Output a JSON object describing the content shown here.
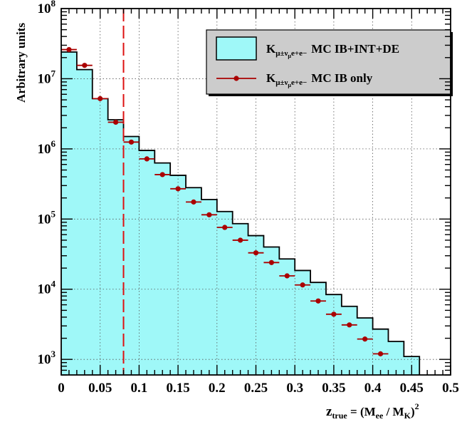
{
  "chart_data": {
    "type": "bar",
    "subtype": "histogram-with-points",
    "x_scale": "linear",
    "y_scale": "log",
    "xlim": [
      0,
      0.5
    ],
    "ylim": [
      600,
      100000000
    ],
    "grid": true,
    "legend_position": "top-right",
    "ylabel": "Arbitrary units",
    "xlabel": {
      "z": "z",
      "z_sub": "true",
      "eq": " = (M",
      "ee_sub": "ee",
      "slash": " / M",
      "k_sub": "K",
      "close": ")",
      "sup": "2"
    },
    "x_ticks": [
      {
        "value": 0,
        "label": "0"
      },
      {
        "value": 0.05,
        "label": "0.05"
      },
      {
        "value": 0.1,
        "label": "0.1"
      },
      {
        "value": 0.15,
        "label": "0.15"
      },
      {
        "value": 0.2,
        "label": "0.2"
      },
      {
        "value": 0.25,
        "label": "0.25"
      },
      {
        "value": 0.3,
        "label": "0.3"
      },
      {
        "value": 0.35,
        "label": "0.35"
      },
      {
        "value": 0.4,
        "label": "0.4"
      },
      {
        "value": 0.45,
        "label": "0.45"
      },
      {
        "value": 0.5,
        "label": "0.5"
      }
    ],
    "y_ticks": [
      {
        "value": 1000,
        "base": "10",
        "exp": "3"
      },
      {
        "value": 10000,
        "base": "10",
        "exp": "4"
      },
      {
        "value": 100000,
        "base": "10",
        "exp": "5"
      },
      {
        "value": 1000000,
        "base": "10",
        "exp": "6"
      },
      {
        "value": 10000000,
        "base": "10",
        "exp": "7"
      },
      {
        "value": 100000000,
        "base": "10",
        "exp": "8"
      }
    ],
    "cut_line": {
      "x": 0.08,
      "color": "#dd1111"
    },
    "series": [
      {
        "legend": {
          "k": "K",
          "sub": "μ±ν",
          "subsub": "μ",
          "sub2": "e+e−",
          "text": "MC IB+INT+DE"
        },
        "kind": "histogram",
        "fill_color": "#9ff8f8",
        "line_color": "#000000",
        "bin_width": 0.02,
        "bin_edges_start": 0,
        "values": [
          24000000,
          13500000,
          5200000,
          2600000,
          1500000,
          950000,
          630000,
          420000,
          280000,
          190000,
          128000,
          86000,
          58000,
          40000,
          27000,
          18500,
          12500,
          8400,
          5700,
          3900,
          2700,
          1800,
          1100,
          0,
          0
        ]
      },
      {
        "legend": {
          "k": "K",
          "sub": "μ±ν",
          "subsub": "μ",
          "sub2": "e+e−",
          "text": "MC IB only"
        },
        "kind": "points",
        "color": "#aa0000",
        "x": [
          0.01,
          0.03,
          0.05,
          0.07,
          0.09,
          0.11,
          0.13,
          0.15,
          0.17,
          0.19,
          0.21,
          0.23,
          0.25,
          0.27,
          0.29,
          0.31,
          0.33,
          0.35,
          0.37,
          0.39,
          0.41
        ],
        "values": [
          26000000,
          15500000,
          5200000,
          2400000,
          1250000,
          720000,
          430000,
          270000,
          175000,
          115000,
          76000,
          50000,
          33000,
          24000,
          15500,
          11500,
          6800,
          4400,
          3100,
          1950,
          1200
        ]
      }
    ]
  }
}
